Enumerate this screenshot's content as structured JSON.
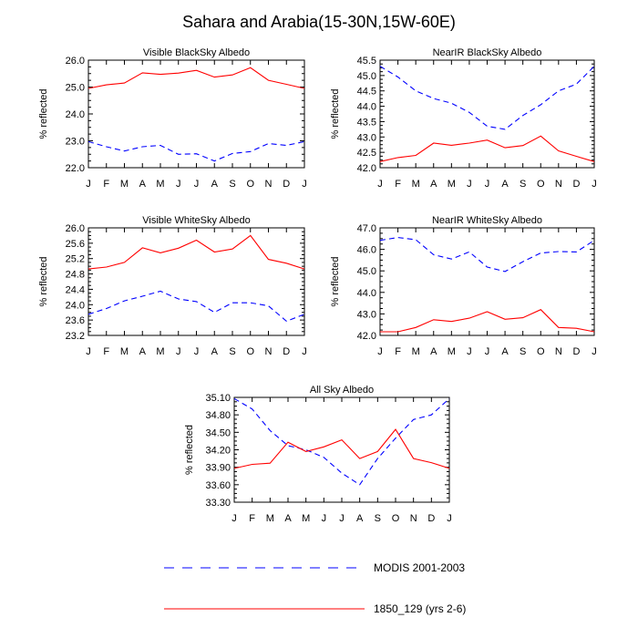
{
  "figure": {
    "title": "Sahara and Arabia(15-30N,15W-60E)"
  },
  "legend": [
    {
      "name": "MODIS 2001-2003",
      "color": "#0000ff",
      "style": "dashed"
    },
    {
      "name": "1850_129 (yrs 2-6)",
      "color": "#ff0000",
      "style": "solid"
    }
  ],
  "chart_data": [
    {
      "type": "line",
      "title": "Visible BlackSky Albedo",
      "ylabel": "% reflected",
      "xlabel": "",
      "categories": [
        "J",
        "F",
        "M",
        "A",
        "M",
        "J",
        "J",
        "A",
        "S",
        "O",
        "N",
        "D",
        "J"
      ],
      "ylim": [
        22.0,
        26.0
      ],
      "yticks": [
        "22.0",
        "23.0",
        "24.0",
        "25.0",
        "26.0"
      ],
      "series": [
        {
          "name": "MODIS 2001-2003",
          "values": [
            22.97,
            22.78,
            22.62,
            22.78,
            22.83,
            22.5,
            22.52,
            22.25,
            22.53,
            22.6,
            22.9,
            22.83,
            22.97
          ]
        },
        {
          "name": "1850_129 (yrs 2-6)",
          "values": [
            24.95,
            25.08,
            25.15,
            25.53,
            25.47,
            25.52,
            25.62,
            25.37,
            25.45,
            25.72,
            25.25,
            25.1,
            24.95
          ]
        }
      ]
    },
    {
      "type": "line",
      "title": "NearIR BlackSky Albedo",
      "ylabel": "% reflected",
      "xlabel": "",
      "categories": [
        "J",
        "F",
        "M",
        "A",
        "M",
        "J",
        "J",
        "A",
        "S",
        "O",
        "N",
        "D",
        "J"
      ],
      "ylim": [
        42.0,
        45.5
      ],
      "yticks": [
        "42.0",
        "42.5",
        "43.0",
        "43.5",
        "44.0",
        "44.5",
        "45.0",
        "45.5"
      ],
      "series": [
        {
          "name": "MODIS 2001-2003",
          "values": [
            45.3,
            44.95,
            44.5,
            44.25,
            44.1,
            43.8,
            43.35,
            43.25,
            43.7,
            44.05,
            44.5,
            44.72,
            45.3
          ]
        },
        {
          "name": "1850_129 (yrs 2-6)",
          "values": [
            42.2,
            42.33,
            42.4,
            42.8,
            42.73,
            42.8,
            42.9,
            42.65,
            42.72,
            43.03,
            42.55,
            42.37,
            42.2
          ]
        }
      ]
    },
    {
      "type": "line",
      "title": "Visible WhiteSky Albedo",
      "ylabel": "% reflected",
      "xlabel": "",
      "categories": [
        "J",
        "F",
        "M",
        "A",
        "M",
        "J",
        "J",
        "A",
        "S",
        "O",
        "N",
        "D",
        "J"
      ],
      "ylim": [
        23.2,
        26.0
      ],
      "yticks": [
        "23.2",
        "23.6",
        "24.0",
        "24.4",
        "24.8",
        "25.2",
        "25.6",
        "26.0"
      ],
      "series": [
        {
          "name": "MODIS 2001-2003",
          "values": [
            23.75,
            23.9,
            24.1,
            24.22,
            24.35,
            24.15,
            24.08,
            23.8,
            24.05,
            24.05,
            23.97,
            23.57,
            23.75
          ]
        },
        {
          "name": "1850_129 (yrs 2-6)",
          "values": [
            24.93,
            24.98,
            25.1,
            25.48,
            25.35,
            25.47,
            25.68,
            25.37,
            25.45,
            25.8,
            25.18,
            25.08,
            24.93
          ]
        }
      ]
    },
    {
      "type": "line",
      "title": "NearIR WhiteSky Albedo",
      "ylabel": "% reflected",
      "xlabel": "",
      "categories": [
        "J",
        "F",
        "M",
        "A",
        "M",
        "J",
        "J",
        "A",
        "S",
        "O",
        "N",
        "D",
        "J"
      ],
      "ylim": [
        42.0,
        47.0
      ],
      "yticks": [
        "42.0",
        "43.0",
        "44.0",
        "45.0",
        "46.0",
        "47.0"
      ],
      "series": [
        {
          "name": "MODIS 2001-2003",
          "values": [
            46.42,
            46.55,
            46.45,
            45.75,
            45.55,
            45.88,
            45.18,
            44.97,
            45.43,
            45.83,
            45.9,
            45.88,
            46.42
          ]
        },
        {
          "name": "1850_129 (yrs 2-6)",
          "values": [
            42.17,
            42.17,
            42.37,
            42.73,
            42.65,
            42.8,
            43.1,
            42.75,
            42.82,
            43.2,
            42.37,
            42.33,
            42.17
          ]
        }
      ]
    },
    {
      "type": "line",
      "title": "All Sky Albedo",
      "ylabel": "% reflected",
      "xlabel": "",
      "categories": [
        "J",
        "F",
        "M",
        "A",
        "M",
        "J",
        "J",
        "A",
        "S",
        "O",
        "N",
        "D",
        "J"
      ],
      "ylim": [
        33.3,
        35.1
      ],
      "yticks": [
        "33.30",
        "33.60",
        "33.90",
        "34.20",
        "34.50",
        "34.80",
        "35.10"
      ],
      "series": [
        {
          "name": "MODIS 2001-2003",
          "values": [
            35.08,
            34.9,
            34.53,
            34.27,
            34.2,
            34.07,
            33.8,
            33.6,
            34.05,
            34.4,
            34.72,
            34.8,
            35.08
          ]
        },
        {
          "name": "1850_129 (yrs 2-6)",
          "values": [
            33.88,
            33.95,
            33.97,
            34.33,
            34.17,
            34.25,
            34.37,
            34.05,
            34.17,
            34.55,
            34.05,
            33.98,
            33.88
          ]
        }
      ]
    }
  ]
}
